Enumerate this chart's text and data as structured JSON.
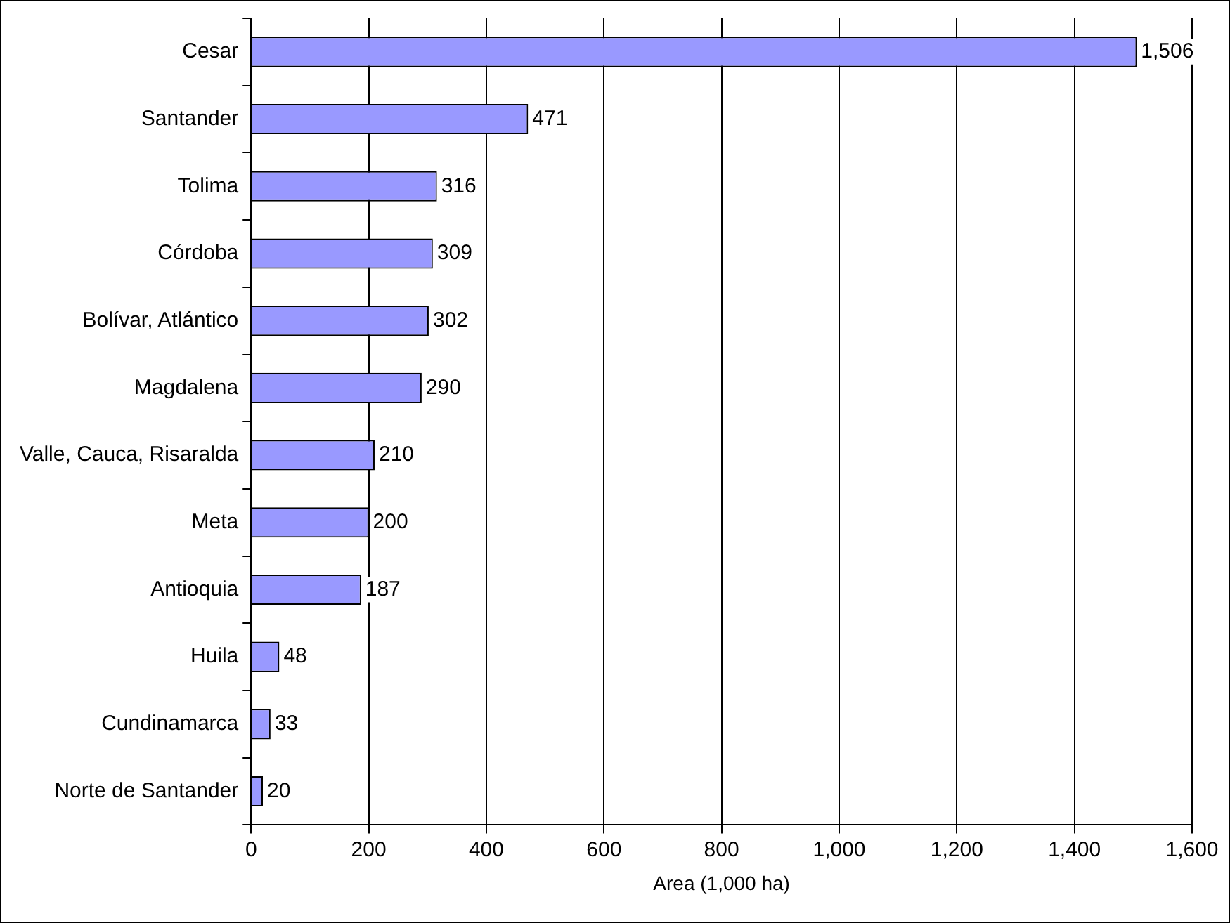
{
  "chart_data": {
    "type": "bar",
    "orientation": "horizontal",
    "xlabel": "Area (1,000 ha)",
    "categories": [
      "Cesar",
      "Santander",
      "Tolima",
      "Córdoba",
      "Bolívar, Atlántico",
      "Magdalena",
      "Valle, Cauca, Risaralda",
      "Meta",
      "Antioquia",
      "Huila",
      "Cundinamarca",
      "Norte de Santander"
    ],
    "values": [
      1506,
      471,
      316,
      309,
      302,
      290,
      210,
      200,
      187,
      48,
      33,
      20
    ],
    "color": "#9999ff",
    "xlim": [
      0,
      1600
    ],
    "xticks": [
      0,
      200,
      400,
      600,
      800,
      {
        "value": 1000,
        "label": "1,000"
      },
      {
        "value": 1200,
        "label": "1,200"
      },
      {
        "value": 1400,
        "label": "1,400"
      },
      {
        "value": 1600,
        "label": "1,600"
      }
    ],
    "value_labels": [
      "1,506",
      "471",
      "316",
      "309",
      "302",
      "290",
      "210",
      "200",
      "187",
      "48",
      "33",
      "20"
    ],
    "grid": "x",
    "legend": false
  }
}
